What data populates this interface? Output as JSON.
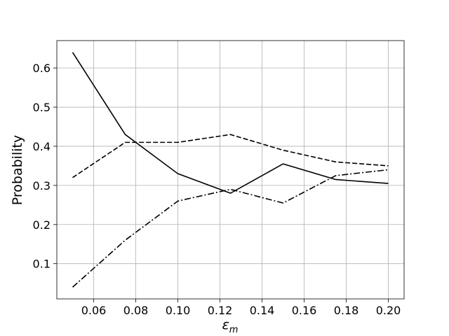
{
  "chart_data": {
    "type": "line",
    "x_label": {
      "symbol": "ε",
      "subscript": "m"
    },
    "y_label": "Probability",
    "x": [
      0.05,
      0.075,
      0.1,
      0.125,
      0.15,
      0.175,
      0.2
    ],
    "series": [
      {
        "color": "#000000",
        "style": "solid",
        "values": [
          0.64,
          0.43,
          0.33,
          0.28,
          0.355,
          0.315,
          0.305
        ]
      },
      {
        "color": "#000000",
        "style": "dashed",
        "values": [
          0.32,
          0.41,
          0.41,
          0.43,
          0.39,
          0.36,
          0.35
        ]
      },
      {
        "color": "#000000",
        "style": "dashdot",
        "values": [
          0.04,
          0.16,
          0.26,
          0.29,
          0.255,
          0.325,
          0.34
        ]
      }
    ],
    "xlim": [
      0.0425,
      0.2075
    ],
    "xticks": [
      0.06,
      0.08,
      {
        "value": 0.1,
        "label": "0.10"
      },
      0.12,
      0.14,
      0.16,
      0.18,
      {
        "value": 0.2,
        "label": "0.20"
      }
    ],
    "ylim": [
      0.01,
      0.67
    ],
    "yticks": [
      0.1,
      0.2,
      0.3,
      0.4,
      0.5,
      0.6
    ],
    "grid": true
  }
}
